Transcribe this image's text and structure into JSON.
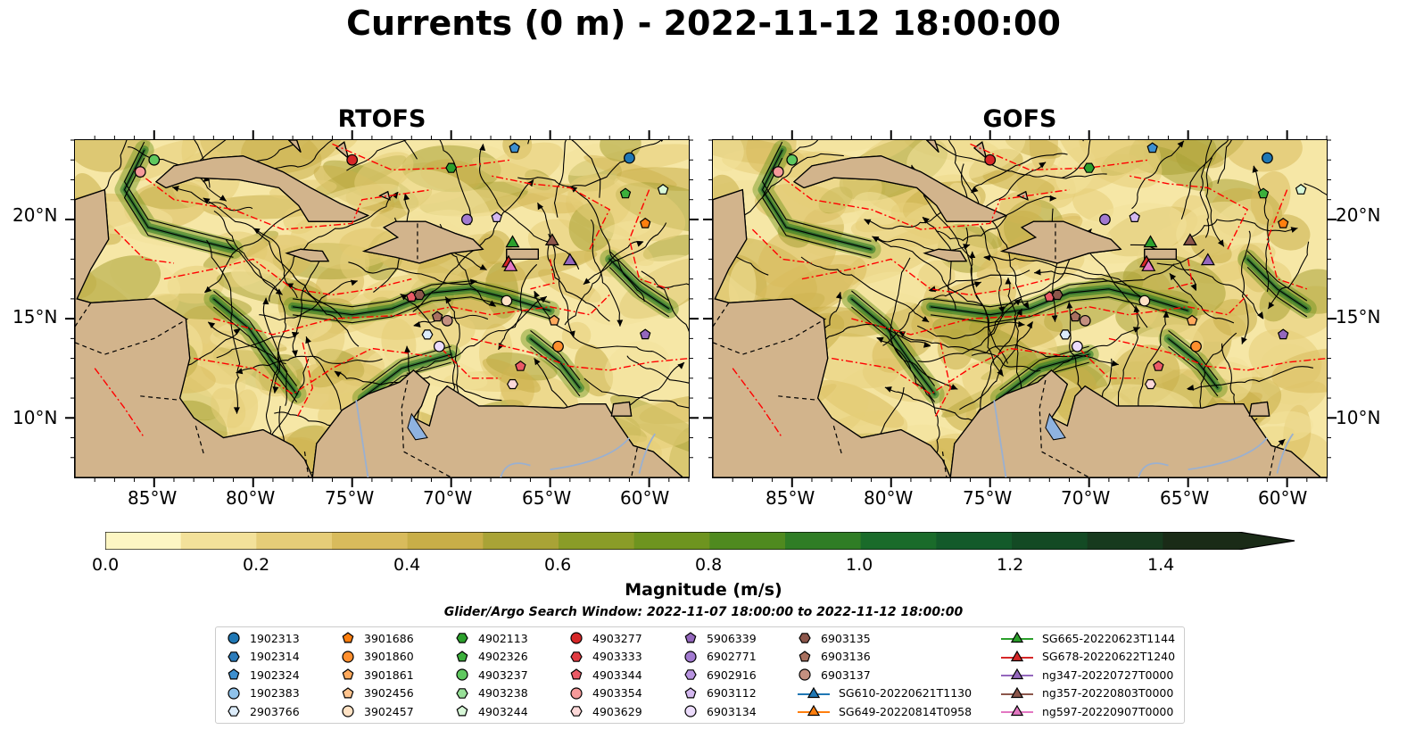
{
  "title": "Currents (0 m) - 2022-11-12 18:00:00",
  "panels": [
    {
      "name": "rtofs",
      "title": "RTOFS"
    },
    {
      "name": "gofs",
      "title": "GOFS"
    }
  ],
  "axes": {
    "x_ticks": [
      "85°W",
      "80°W",
      "75°W",
      "70°W",
      "65°W",
      "60°W"
    ],
    "y_ticks": [
      "20°N",
      "15°N",
      "10°N"
    ],
    "lon_range": [
      -89,
      -58
    ],
    "lat_range": [
      7,
      24
    ]
  },
  "colorbar": {
    "label": "Magnitude (m/s)",
    "ticks": [
      "0.0",
      "0.2",
      "0.4",
      "0.6",
      "0.8",
      "1.0",
      "1.2",
      "1.4"
    ],
    "range": [
      0,
      1.5
    ],
    "extend": "max",
    "colors": [
      "#fdf6c3",
      "#f3e19a",
      "#e6cd78",
      "#d8bb5c",
      "#c8ae48",
      "#a9a336",
      "#8a9c28",
      "#6e941f",
      "#4f8a1f",
      "#2f7d25",
      "#1a6b2a",
      "#135a2a",
      "#134a24",
      "#173a1e",
      "#1a2b17"
    ]
  },
  "search_window": "Glider/Argo Search Window: 2022-11-07 18:00:00 to 2022-11-12 18:00:00",
  "legend": {
    "items": [
      {
        "label": "1902313",
        "marker": "circle",
        "color": "#1f77b4"
      },
      {
        "label": "1902314",
        "marker": "hexagon",
        "color": "#2b7bba"
      },
      {
        "label": "1902324",
        "marker": "pentagon",
        "color": "#3d8fcf"
      },
      {
        "label": "1902383",
        "marker": "circle",
        "color": "#8fc2ea"
      },
      {
        "label": "2903766",
        "marker": "hexagon",
        "color": "#dcecfa"
      },
      {
        "label": "3901686",
        "marker": "pentagon",
        "color": "#ff7f0e"
      },
      {
        "label": "3901860",
        "marker": "circle",
        "color": "#ff8f2e"
      },
      {
        "label": "3901861",
        "marker": "pentagon",
        "color": "#ffa95c"
      },
      {
        "label": "3902456",
        "marker": "pentagon",
        "color": "#ffc48e"
      },
      {
        "label": "3902457",
        "marker": "circle",
        "color": "#ffe2c4"
      },
      {
        "label": "4902113",
        "marker": "hexagon",
        "color": "#2ca02c"
      },
      {
        "label": "4902326",
        "marker": "pentagon",
        "color": "#3cb03c"
      },
      {
        "label": "4903237",
        "marker": "circle",
        "color": "#5fc85f"
      },
      {
        "label": "4903238",
        "marker": "hexagon",
        "color": "#98e098"
      },
      {
        "label": "4903244",
        "marker": "pentagon",
        "color": "#d8f8d8"
      },
      {
        "label": "4903277",
        "marker": "circle",
        "color": "#d62728"
      },
      {
        "label": "4903333",
        "marker": "hexagon",
        "color": "#e03a40"
      },
      {
        "label": "4903344",
        "marker": "pentagon",
        "color": "#ea5a66"
      },
      {
        "label": "4903354",
        "marker": "circle",
        "color": "#f59a9a"
      },
      {
        "label": "4903629",
        "marker": "hexagon",
        "color": "#fcd8d8"
      },
      {
        "label": "5906339",
        "marker": "pentagon",
        "color": "#9467bd"
      },
      {
        "label": "6902771",
        "marker": "circle",
        "color": "#a27ad0"
      },
      {
        "label": "6902916",
        "marker": "hexagon",
        "color": "#b894e0"
      },
      {
        "label": "6903112",
        "marker": "pentagon",
        "color": "#d4b8f0"
      },
      {
        "label": "6903134",
        "marker": "circle",
        "color": "#ecdcfc"
      },
      {
        "label": "6903135",
        "marker": "hexagon",
        "color": "#8c564b"
      },
      {
        "label": "6903136",
        "marker": "pentagon",
        "color": "#a8705f"
      },
      {
        "label": "6903137",
        "marker": "circle",
        "color": "#c49080"
      },
      {
        "label": "SG610-20220621T1130",
        "marker": "triangle-line",
        "color": "#1f77b4"
      },
      {
        "label": "SG649-20220814T0958",
        "marker": "triangle-line",
        "color": "#ff7f0e"
      },
      {
        "label": "SG665-20220623T1144",
        "marker": "triangle-line",
        "color": "#2ca02c"
      },
      {
        "label": "SG678-20220622T1240",
        "marker": "triangle-line",
        "color": "#d62728"
      },
      {
        "label": "ng347-20220727T0000",
        "marker": "triangle-line",
        "color": "#9467bd"
      },
      {
        "label": "ng357-20220803T0000",
        "marker": "triangle-line",
        "color": "#8c564b"
      },
      {
        "label": "ng597-20220907T0000",
        "marker": "triangle-line",
        "color": "#e377c2"
      }
    ]
  },
  "map_colors": {
    "land": "#d2b48c",
    "ocean_low": "#f6e7a6",
    "streamline": "#000000",
    "eez_boundary": "#ff0000",
    "lakes": "#8fb3e0",
    "rivers": "#9ab0d0"
  }
}
